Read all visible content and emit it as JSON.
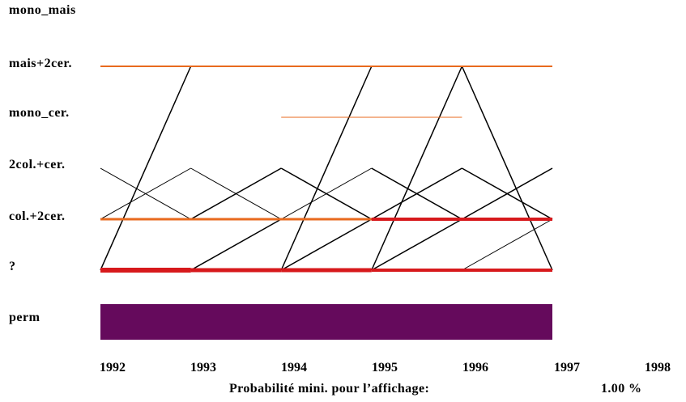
{
  "states": [
    "mono_mais",
    "mais+2cer.",
    "mono_cer.",
    "2col.+cer.",
    "col.+2cer.",
    "?",
    "perm"
  ],
  "years": [
    "1992",
    "1993",
    "1994",
    "1995",
    "1996",
    "1997",
    "1998"
  ],
  "footer": {
    "caption": "Probabilité mini. pour l’affichage:",
    "value": "1.00 %"
  },
  "colors": {
    "orange": "#e86a1e",
    "red": "#d7191c",
    "black": "#000000",
    "perm": "#650a5c"
  },
  "segments": [
    {
      "from": [
        1992,
        "mais+2cer."
      ],
      "to": [
        1997,
        "mais+2cer."
      ],
      "color": "orange",
      "weight": 2
    },
    {
      "from": [
        1994,
        "mono_cer."
      ],
      "to": [
        1996,
        "mono_cer."
      ],
      "color": "orange",
      "weight": 1
    },
    {
      "from": [
        1992,
        "col.+2cer."
      ],
      "to": [
        1995,
        "col.+2cer."
      ],
      "color": "orange",
      "weight": 3
    },
    {
      "from": [
        1995,
        "col.+2cer."
      ],
      "to": [
        1997,
        "col.+2cer."
      ],
      "color": "red",
      "weight": 4
    },
    {
      "from": [
        1992,
        "?"
      ],
      "to": [
        1993,
        "?"
      ],
      "color": "red",
      "weight": 6
    },
    {
      "from": [
        1993,
        "?"
      ],
      "to": [
        1994,
        "?"
      ],
      "color": "red",
      "weight": 5
    },
    {
      "from": [
        1994,
        "?"
      ],
      "to": [
        1995,
        "?"
      ],
      "color": "red",
      "weight": 5
    },
    {
      "from": [
        1995,
        "?"
      ],
      "to": [
        1997,
        "?"
      ],
      "color": "red",
      "weight": 4
    },
    {
      "from": [
        1992,
        "?"
      ],
      "to": [
        1993,
        "mais+2cer."
      ],
      "color": "black",
      "weight": 1.5
    },
    {
      "from": [
        1994,
        "?"
      ],
      "to": [
        1995,
        "mais+2cer."
      ],
      "color": "black",
      "weight": 1.5
    },
    {
      "from": [
        1995,
        "?"
      ],
      "to": [
        1996,
        "mais+2cer."
      ],
      "color": "black",
      "weight": 1.5
    },
    {
      "from": [
        1996,
        "mais+2cer."
      ],
      "to": [
        1997,
        "?"
      ],
      "color": "black",
      "weight": 1.5
    },
    {
      "from": [
        1992,
        "2col.+cer."
      ],
      "to": [
        1993,
        "col.+2cer."
      ],
      "color": "black",
      "weight": 1
    },
    {
      "from": [
        1992,
        "col.+2cer."
      ],
      "to": [
        1993,
        "2col.+cer."
      ],
      "color": "black",
      "weight": 1
    },
    {
      "from": [
        1993,
        "2col.+cer."
      ],
      "to": [
        1994,
        "col.+2cer."
      ],
      "color": "black",
      "weight": 1
    },
    {
      "from": [
        1993,
        "col.+2cer."
      ],
      "to": [
        1994,
        "2col.+cer."
      ],
      "color": "black",
      "weight": 1.5
    },
    {
      "from": [
        1994,
        "2col.+cer."
      ],
      "to": [
        1995,
        "col.+2cer."
      ],
      "color": "black",
      "weight": 1.5
    },
    {
      "from": [
        1994,
        "col.+2cer."
      ],
      "to": [
        1995,
        "2col.+cer."
      ],
      "color": "black",
      "weight": 1
    },
    {
      "from": [
        1995,
        "2col.+cer."
      ],
      "to": [
        1996,
        "col.+2cer."
      ],
      "color": "black",
      "weight": 1.5
    },
    {
      "from": [
        1995,
        "col.+2cer."
      ],
      "to": [
        1996,
        "2col.+cer."
      ],
      "color": "black",
      "weight": 1.5
    },
    {
      "from": [
        1996,
        "2col.+cer."
      ],
      "to": [
        1997,
        "col.+2cer."
      ],
      "color": "black",
      "weight": 1.5
    },
    {
      "from": [
        1996,
        "col.+2cer."
      ],
      "to": [
        1997,
        "2col.+cer."
      ],
      "color": "black",
      "weight": 1.5
    },
    {
      "from": [
        1993,
        "?"
      ],
      "to": [
        1994,
        "col.+2cer."
      ],
      "color": "black",
      "weight": 1.5
    },
    {
      "from": [
        1994,
        "?"
      ],
      "to": [
        1995,
        "col.+2cer."
      ],
      "color": "black",
      "weight": 1.5
    },
    {
      "from": [
        1995,
        "?"
      ],
      "to": [
        1996,
        "col.+2cer."
      ],
      "color": "black",
      "weight": 1.5
    },
    {
      "from": [
        1996,
        "?"
      ],
      "to": [
        1997,
        "col.+2cer."
      ],
      "color": "black",
      "weight": 1
    }
  ],
  "bands": [
    {
      "from": 1992,
      "to": 1997,
      "state": "perm",
      "color": "perm"
    }
  ]
}
